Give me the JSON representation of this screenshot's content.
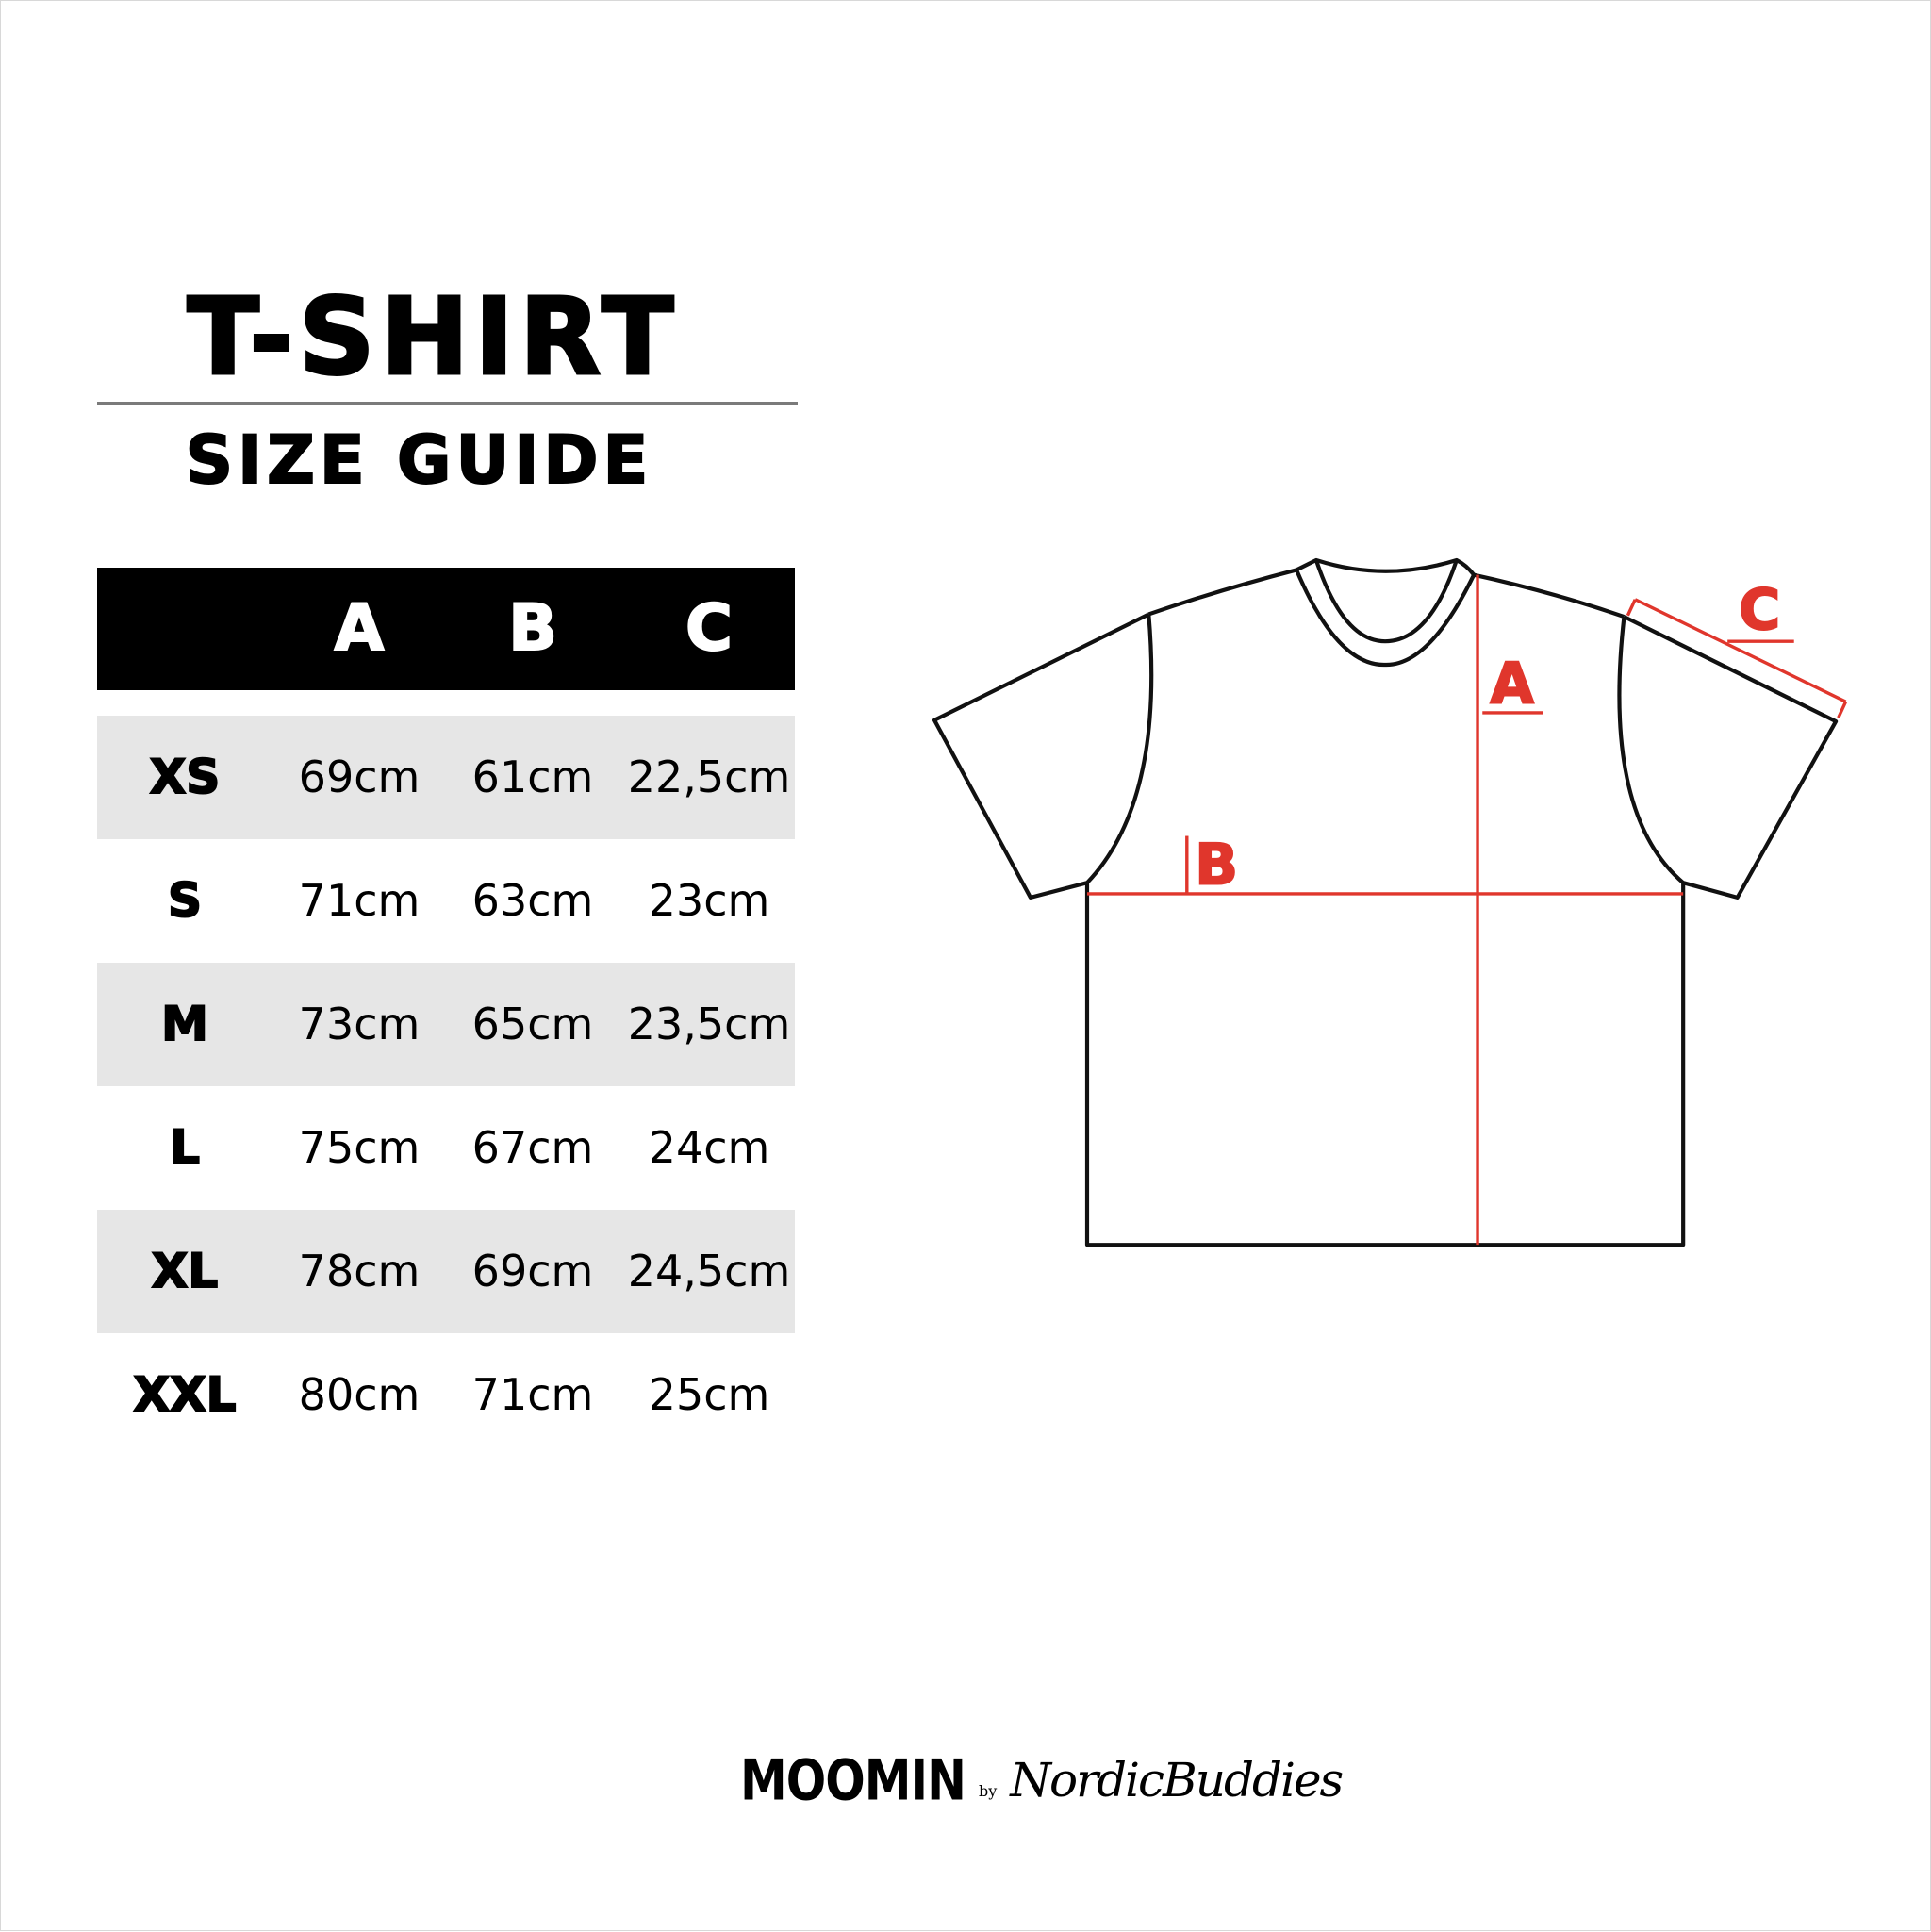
{
  "title": "T-SHIRT",
  "subtitle": "SIZE GUIDE",
  "table": {
    "columns": [
      "",
      "A",
      "B",
      "C"
    ],
    "rows": [
      [
        "XS",
        "69cm",
        "61cm",
        "22,5cm"
      ],
      [
        "S",
        "71cm",
        "63cm",
        "23cm"
      ],
      [
        "M",
        "73cm",
        "65cm",
        "23,5cm"
      ],
      [
        "L",
        "75cm",
        "67cm",
        "24cm"
      ],
      [
        "XL",
        "78cm",
        "69cm",
        "24,5cm"
      ],
      [
        "XXL",
        "80cm",
        "71cm",
        "25cm"
      ]
    ]
  },
  "diagram": {
    "labels": {
      "a": "A",
      "b": "B",
      "c": "C"
    },
    "outline_color": "#111111",
    "measure_color": "#e0362c"
  },
  "logo": {
    "brand": "MOOMIN",
    "by": "by",
    "partner": "NordicBuddies"
  },
  "colors": {
    "header_bg": "#000000",
    "stripe_bg": "#e6e6e6"
  }
}
